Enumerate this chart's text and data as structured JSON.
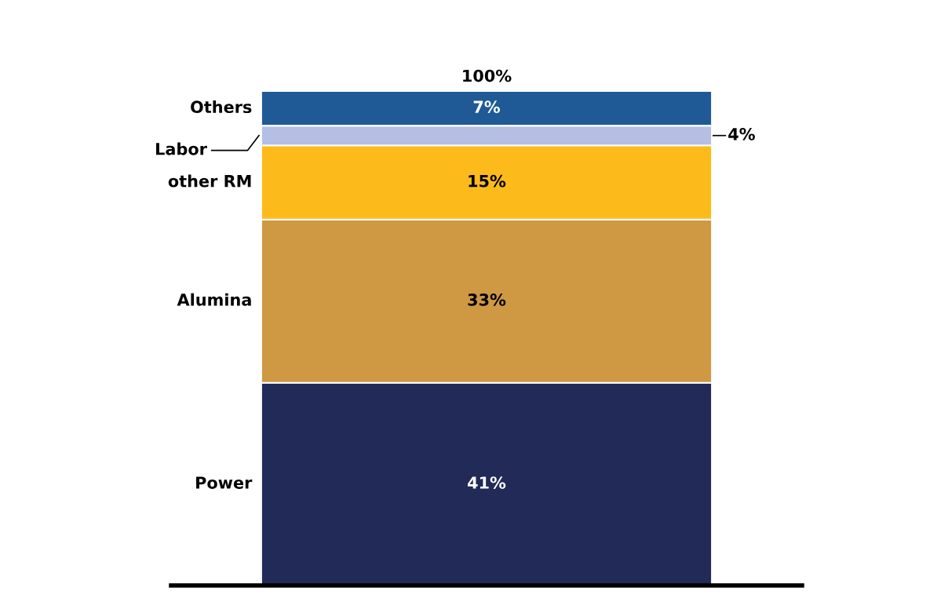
{
  "chart_data": {
    "type": "bar",
    "stacked": true,
    "categories": [
      null
    ],
    "tick_labels": false,
    "series": [
      {
        "name": "Power",
        "color": "#222a57",
        "values": [
          41
        ],
        "value_labels": [
          "41%"
        ]
      },
      {
        "name": "Alumina",
        "color": "#cf9843",
        "values": [
          33
        ],
        "value_labels": [
          "33%"
        ]
      },
      {
        "name": "other RM",
        "color": "#fdbb1b",
        "values": [
          15
        ],
        "value_labels": [
          "15%"
        ]
      },
      {
        "name": "Labor",
        "color": "#b4bfe3",
        "values": [
          4
        ],
        "value_labels": [
          "4%"
        ]
      },
      {
        "name": "Others",
        "color": "#1f5a96",
        "values": [
          7
        ],
        "value_labels": [
          "7%"
        ]
      }
    ],
    "totals": [
      "100%"
    ]
  }
}
